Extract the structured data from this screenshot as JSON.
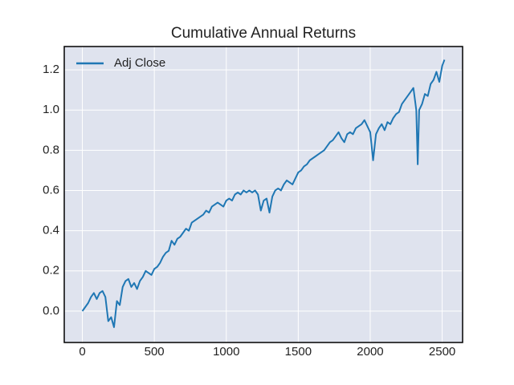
{
  "chart_data": {
    "type": "line",
    "title": "Cumulative Annual Returns",
    "x": [
      0,
      20,
      40,
      60,
      80,
      100,
      120,
      140,
      160,
      180,
      200,
      220,
      240,
      260,
      280,
      300,
      320,
      340,
      360,
      380,
      400,
      420,
      440,
      460,
      480,
      500,
      520,
      540,
      560,
      580,
      600,
      620,
      640,
      660,
      680,
      700,
      720,
      740,
      760,
      780,
      800,
      820,
      840,
      860,
      880,
      900,
      920,
      940,
      960,
      980,
      1000,
      1020,
      1040,
      1060,
      1080,
      1100,
      1120,
      1140,
      1160,
      1180,
      1200,
      1220,
      1240,
      1260,
      1280,
      1300,
      1320,
      1340,
      1360,
      1380,
      1400,
      1420,
      1440,
      1460,
      1480,
      1500,
      1520,
      1540,
      1560,
      1580,
      1600,
      1620,
      1640,
      1660,
      1680,
      1700,
      1720,
      1740,
      1760,
      1780,
      1800,
      1820,
      1840,
      1860,
      1880,
      1900,
      1920,
      1940,
      1960,
      1980,
      2000,
      2020,
      2040,
      2060,
      2080,
      2100,
      2120,
      2140,
      2160,
      2180,
      2200,
      2220,
      2240,
      2260,
      2280,
      2300,
      2320,
      2330,
      2340,
      2360,
      2380,
      2400,
      2420,
      2440,
      2460,
      2480,
      2500,
      2516
    ],
    "series": [
      {
        "name": "Adj Close",
        "color": "#1f77b4",
        "values": [
          0.0,
          0.02,
          0.04,
          0.07,
          0.09,
          0.06,
          0.09,
          0.1,
          0.07,
          -0.05,
          -0.03,
          -0.08,
          0.05,
          0.03,
          0.12,
          0.15,
          0.16,
          0.12,
          0.14,
          0.11,
          0.15,
          0.17,
          0.2,
          0.19,
          0.18,
          0.21,
          0.22,
          0.24,
          0.27,
          0.29,
          0.3,
          0.35,
          0.33,
          0.36,
          0.37,
          0.39,
          0.41,
          0.4,
          0.44,
          0.45,
          0.46,
          0.47,
          0.48,
          0.5,
          0.49,
          0.52,
          0.53,
          0.54,
          0.53,
          0.52,
          0.55,
          0.56,
          0.55,
          0.58,
          0.59,
          0.58,
          0.6,
          0.59,
          0.6,
          0.59,
          0.6,
          0.58,
          0.5,
          0.55,
          0.56,
          0.49,
          0.57,
          0.6,
          0.61,
          0.6,
          0.63,
          0.65,
          0.64,
          0.63,
          0.66,
          0.69,
          0.7,
          0.72,
          0.73,
          0.75,
          0.76,
          0.77,
          0.78,
          0.79,
          0.8,
          0.82,
          0.84,
          0.85,
          0.87,
          0.89,
          0.86,
          0.84,
          0.88,
          0.89,
          0.88,
          0.91,
          0.92,
          0.93,
          0.95,
          0.92,
          0.89,
          0.75,
          0.88,
          0.91,
          0.93,
          0.9,
          0.94,
          0.93,
          0.96,
          0.98,
          0.99,
          1.03,
          1.05,
          1.07,
          1.09,
          1.11,
          1.0,
          0.73,
          1.0,
          1.03,
          1.08,
          1.07,
          1.13,
          1.15,
          1.19,
          1.14,
          1.22,
          1.25
        ]
      }
    ],
    "xlim": [
      -125.8,
      2641.8
    ],
    "ylim": [
      -0.156,
      1.316
    ],
    "xticks": [
      0,
      500,
      1000,
      1500,
      2000,
      2500
    ],
    "yticks": [
      {
        "value": 0,
        "label": "0.0"
      },
      0.2,
      0.4,
      0.6,
      0.8,
      {
        "value": 1,
        "label": "1.0"
      },
      1.2
    ],
    "grid": true,
    "legend": "upper left"
  }
}
